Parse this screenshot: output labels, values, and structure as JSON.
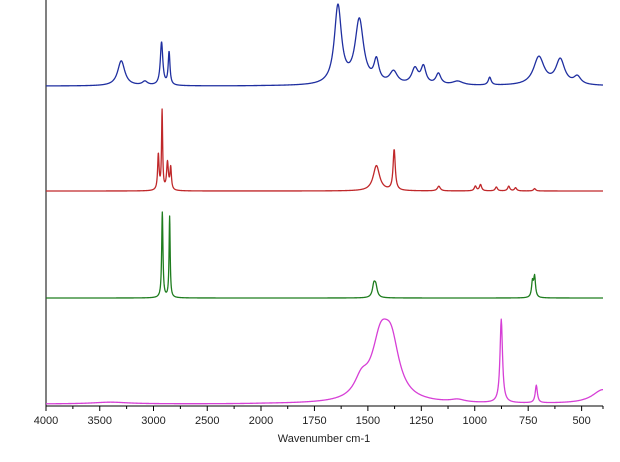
{
  "chart_data": {
    "type": "line",
    "title": "",
    "xlabel": "Wavenumber cm-1",
    "ylabel": "",
    "xlim": [
      4000,
      400
    ],
    "x_reversed": true,
    "x_major_ticks": [
      4000,
      3500,
      3000,
      2500,
      2000,
      1750,
      1500,
      1250,
      1000,
      750,
      500
    ],
    "x_tick_labels": [
      "4000",
      "3500",
      "3000",
      "2500",
      "2000",
      "1750",
      "1500",
      "1250",
      "1000",
      "750",
      "500"
    ],
    "x_axis_break_note": "scale changes at 2000 cm-1",
    "grid": false,
    "legend": "none",
    "y_units": "absorbance (arbitrary, stacked)",
    "series": [
      {
        "color": "#1f2fa0",
        "baseline": 0,
        "peaks": [
          [
            3300,
            0.32,
            40
          ],
          [
            3080,
            0.05,
            30
          ],
          [
            2925,
            0.55,
            14
          ],
          [
            2855,
            0.42,
            10
          ],
          [
            1640,
            1.0,
            20
          ],
          [
            1540,
            0.82,
            24
          ],
          [
            1460,
            0.28,
            14
          ],
          [
            1380,
            0.16,
            22
          ],
          [
            1280,
            0.2,
            18
          ],
          [
            1240,
            0.22,
            14
          ],
          [
            1170,
            0.14,
            14
          ],
          [
            1080,
            0.05,
            30
          ],
          [
            930,
            0.1,
            8
          ],
          [
            700,
            0.36,
            30
          ],
          [
            600,
            0.32,
            25
          ],
          [
            520,
            0.1,
            20
          ]
        ]
      },
      {
        "color": "#c0282a",
        "baseline": 0,
        "peaks": [
          [
            2955,
            0.45,
            8
          ],
          [
            2920,
            1.0,
            6
          ],
          [
            2870,
            0.35,
            10
          ],
          [
            2840,
            0.28,
            8
          ],
          [
            1460,
            0.32,
            18
          ],
          [
            1377,
            0.52,
            6
          ],
          [
            1168,
            0.06,
            8
          ],
          [
            997,
            0.06,
            6
          ],
          [
            973,
            0.08,
            6
          ],
          [
            899,
            0.05,
            6
          ],
          [
            841,
            0.06,
            6
          ],
          [
            809,
            0.04,
            6
          ],
          [
            720,
            0.03,
            6
          ]
        ]
      },
      {
        "color": "#1e7d1e",
        "baseline": 0,
        "peaks": [
          [
            2918,
            1.0,
            7
          ],
          [
            2850,
            0.95,
            6
          ],
          [
            1472,
            0.14,
            8
          ],
          [
            1463,
            0.12,
            8
          ],
          [
            730,
            0.18,
            5
          ],
          [
            720,
            0.24,
            5
          ]
        ]
      },
      {
        "color": "#d63fd6",
        "baseline": 0,
        "peaks": [
          [
            3400,
            0.02,
            200
          ],
          [
            1440,
            0.65,
            50
          ],
          [
            1390,
            0.55,
            45
          ],
          [
            1530,
            0.2,
            40
          ],
          [
            1080,
            0.03,
            40
          ],
          [
            876,
            0.95,
            7
          ],
          [
            712,
            0.2,
            6
          ],
          [
            400,
            0.16,
            60
          ]
        ]
      }
    ]
  }
}
